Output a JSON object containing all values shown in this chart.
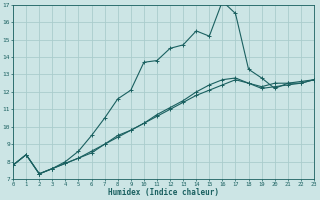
{
  "xlabel": "Humidex (Indice chaleur)",
  "xlim": [
    0,
    23
  ],
  "ylim": [
    7,
    17
  ],
  "yticks": [
    7,
    8,
    9,
    10,
    11,
    12,
    13,
    14,
    15,
    16,
    17
  ],
  "xticks": [
    0,
    1,
    2,
    3,
    4,
    5,
    6,
    7,
    8,
    9,
    10,
    11,
    12,
    13,
    14,
    15,
    16,
    17,
    18,
    19,
    20,
    21,
    22,
    23
  ],
  "background_color": "#cce5e5",
  "grid_color": "#aacccc",
  "line_color": "#1a6060",
  "line1_x": [
    0,
    1,
    2,
    3,
    4,
    5,
    6,
    7,
    8,
    9,
    10,
    11,
    12,
    13,
    14,
    15,
    16,
    17,
    18,
    19,
    20,
    21,
    22,
    23
  ],
  "line1_y": [
    7.8,
    8.4,
    7.3,
    7.6,
    7.9,
    8.2,
    8.6,
    9.0,
    9.4,
    9.8,
    10.2,
    10.6,
    11.0,
    11.4,
    11.8,
    12.1,
    12.4,
    12.7,
    12.5,
    12.3,
    12.5,
    12.5,
    12.6,
    12.7
  ],
  "line2_x": [
    0,
    1,
    2,
    3,
    4,
    5,
    6,
    7,
    8,
    9,
    10,
    11,
    12,
    13,
    14,
    15,
    16,
    17,
    18,
    19,
    20,
    21,
    22,
    23
  ],
  "line2_y": [
    7.8,
    8.4,
    7.3,
    7.6,
    8.0,
    8.6,
    9.5,
    10.5,
    11.6,
    12.1,
    13.7,
    13.8,
    14.5,
    14.7,
    15.5,
    15.2,
    17.2,
    16.5,
    13.3,
    12.8,
    12.2,
    12.5,
    12.5,
    12.7
  ],
  "line3_x": [
    0,
    1,
    2,
    3,
    4,
    5,
    6,
    7,
    8,
    9,
    10,
    11,
    12,
    13,
    14,
    15,
    16,
    17,
    18,
    19,
    20,
    21,
    22,
    23
  ],
  "line3_y": [
    7.8,
    8.4,
    7.3,
    7.6,
    7.9,
    8.2,
    8.5,
    9.0,
    9.5,
    9.8,
    10.2,
    10.7,
    11.1,
    11.5,
    12.0,
    12.4,
    12.7,
    12.8,
    12.5,
    12.2,
    12.3,
    12.4,
    12.5,
    12.7
  ]
}
